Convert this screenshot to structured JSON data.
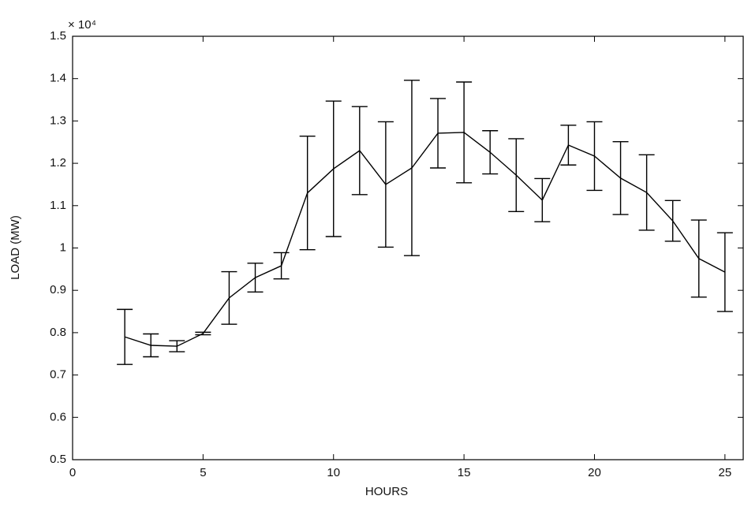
{
  "chart_data": {
    "type": "line",
    "multiplier": "× 10⁴",
    "xlabel": "HOURS",
    "ylabel": "LOAD (MW)",
    "x": [
      2,
      3,
      4,
      5,
      6,
      7,
      8,
      9,
      10,
      11,
      12,
      13,
      14,
      15,
      16,
      17,
      18,
      19,
      20,
      21,
      22,
      23,
      24,
      25
    ],
    "values": [
      0.79,
      0.77,
      0.768,
      0.798,
      0.882,
      0.93,
      0.958,
      1.13,
      1.187,
      1.23,
      1.15,
      1.189,
      1.271,
      1.273,
      1.226,
      1.172,
      1.113,
      1.243,
      1.217,
      1.165,
      1.131,
      1.064,
      0.975,
      0.943
    ],
    "errors": [
      0.065,
      0.027,
      0.013,
      0.003,
      0.062,
      0.034,
      0.031,
      0.134,
      0.16,
      0.104,
      0.148,
      0.207,
      0.082,
      0.119,
      0.051,
      0.086,
      0.051,
      0.047,
      0.081,
      0.086,
      0.089,
      0.048,
      0.091,
      0.093
    ],
    "color": "#000000",
    "xlim": [
      0,
      25.7
    ],
    "ylim": [
      0.5,
      1.5
    ],
    "xticks": [
      0,
      5,
      10,
      15,
      20,
      25
    ],
    "yticks": [
      0.5,
      0.6,
      0.7,
      0.8,
      0.9,
      1,
      1.1,
      1.2,
      1.3,
      1.4,
      1.5
    ]
  }
}
